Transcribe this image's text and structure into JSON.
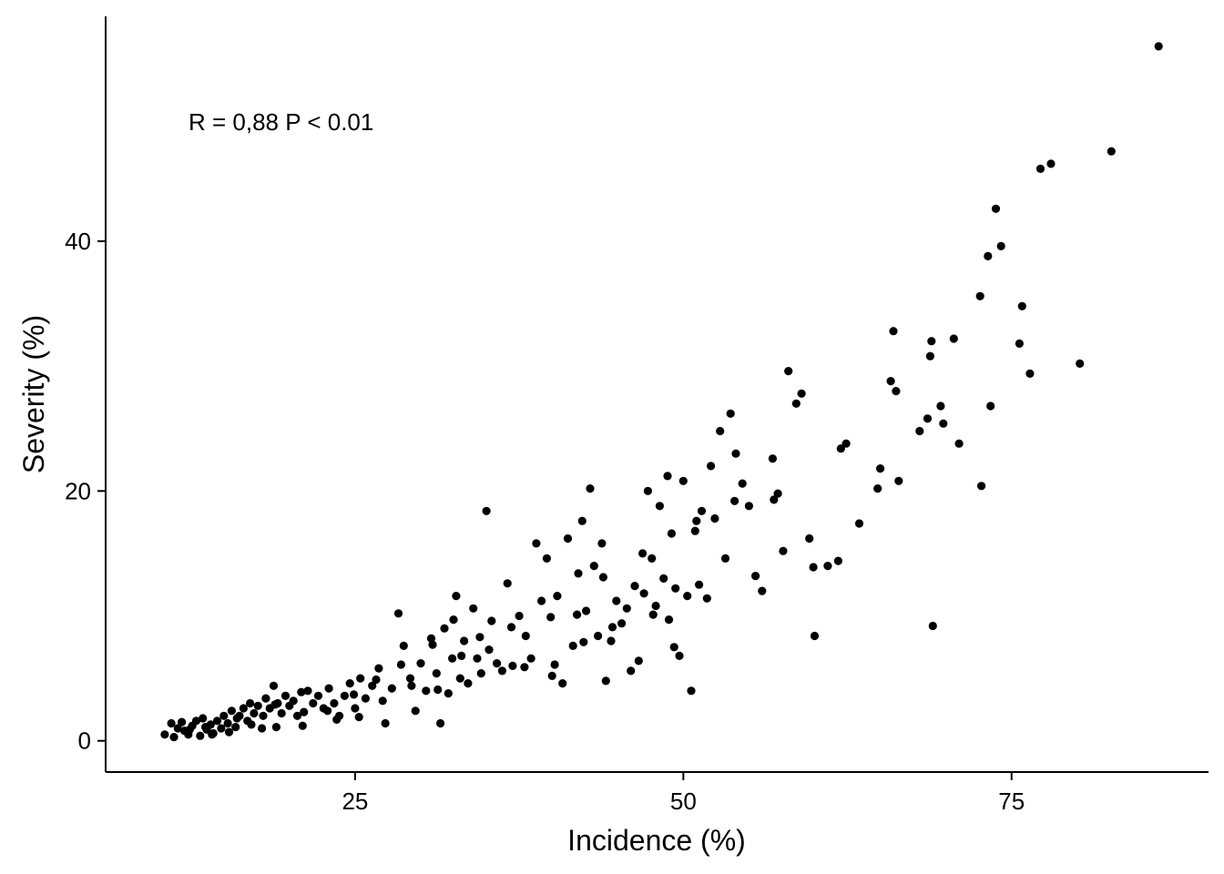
{
  "chart_data": {
    "type": "scatter",
    "xlabel": "Incidence (%)",
    "ylabel": "Severity (%)",
    "xlim": [
      6,
      90
    ],
    "ylim": [
      -2.5,
      58
    ],
    "xticks": [
      25,
      50,
      75
    ],
    "yticks": [
      0,
      20,
      40
    ],
    "annotation": "R = 0,88 P < 0.01",
    "grid": false,
    "legend": "none",
    "point_color": "#000000",
    "points": [
      [
        10.5,
        0.5
      ],
      [
        11.2,
        0.3
      ],
      [
        11.5,
        1.0
      ],
      [
        11.8,
        1.5
      ],
      [
        12.0,
        0.8
      ],
      [
        12.3,
        0.5
      ],
      [
        12.6,
        1.2
      ],
      [
        12.9,
        1.6
      ],
      [
        13.2,
        0.4
      ],
      [
        13.4,
        1.8
      ],
      [
        13.7,
        0.9
      ],
      [
        14.0,
        1.3
      ],
      [
        14.2,
        0.6
      ],
      [
        14.5,
        1.6
      ],
      [
        14.8,
        1.0
      ],
      [
        15.0,
        2.0
      ],
      [
        15.3,
        1.4
      ],
      [
        15.6,
        2.4
      ],
      [
        15.9,
        1.1
      ],
      [
        16.2,
        2.0
      ],
      [
        16.5,
        2.6
      ],
      [
        16.8,
        1.6
      ],
      [
        17.0,
        3.0
      ],
      [
        17.3,
        2.2
      ],
      [
        17.6,
        2.8
      ],
      [
        17.9,
        1.0
      ],
      [
        18.2,
        3.4
      ],
      [
        18.5,
        2.6
      ],
      [
        18.8,
        4.4
      ],
      [
        19.1,
        3.0
      ],
      [
        19.4,
        2.2
      ],
      [
        19.7,
        3.6
      ],
      [
        20.0,
        2.8
      ],
      [
        20.3,
        3.2
      ],
      [
        20.6,
        2.0
      ],
      [
        21.0,
        1.2
      ],
      [
        21.4,
        4.0
      ],
      [
        21.8,
        3.0
      ],
      [
        22.2,
        3.6
      ],
      [
        22.6,
        2.6
      ],
      [
        23.0,
        4.2
      ],
      [
        23.4,
        3.0
      ],
      [
        23.8,
        2.0
      ],
      [
        24.2,
        3.6
      ],
      [
        24.6,
        4.6
      ],
      [
        25.0,
        2.6
      ],
      [
        25.4,
        5.0
      ],
      [
        25.8,
        3.4
      ],
      [
        26.3,
        4.4
      ],
      [
        26.8,
        5.8
      ],
      [
        27.3,
        1.4
      ],
      [
        27.8,
        4.2
      ],
      [
        28.3,
        10.2
      ],
      [
        28.7,
        7.6
      ],
      [
        29.2,
        5.0
      ],
      [
        29.6,
        2.4
      ],
      [
        30.0,
        6.2
      ],
      [
        30.4,
        4.0
      ],
      [
        30.8,
        8.2
      ],
      [
        31.2,
        5.4
      ],
      [
        31.5,
        1.4
      ],
      [
        31.8,
        9.0
      ],
      [
        32.1,
        3.8
      ],
      [
        32.4,
        6.6
      ],
      [
        32.7,
        11.6
      ],
      [
        33.0,
        5.0
      ],
      [
        33.3,
        8.0
      ],
      [
        33.6,
        4.6
      ],
      [
        34.0,
        10.6
      ],
      [
        34.3,
        6.6
      ],
      [
        34.6,
        5.4
      ],
      [
        35.0,
        18.4
      ],
      [
        35.4,
        9.6
      ],
      [
        35.8,
        6.2
      ],
      [
        36.2,
        5.6
      ],
      [
        36.6,
        12.6
      ],
      [
        37.0,
        6.0
      ],
      [
        37.5,
        10.0
      ],
      [
        38.0,
        8.4
      ],
      [
        38.4,
        6.6
      ],
      [
        38.8,
        15.8
      ],
      [
        39.2,
        11.2
      ],
      [
        39.6,
        14.6
      ],
      [
        40.0,
        5.2
      ],
      [
        40.4,
        11.6
      ],
      [
        40.8,
        4.6
      ],
      [
        41.2,
        16.2
      ],
      [
        41.6,
        7.6
      ],
      [
        42.0,
        13.4
      ],
      [
        42.3,
        17.6
      ],
      [
        42.6,
        10.4
      ],
      [
        42.9,
        20.2
      ],
      [
        43.2,
        14.0
      ],
      [
        43.5,
        8.4
      ],
      [
        43.8,
        15.8
      ],
      [
        44.1,
        4.8
      ],
      [
        44.5,
        8.0
      ],
      [
        44.9,
        11.2
      ],
      [
        45.3,
        9.4
      ],
      [
        45.7,
        10.6
      ],
      [
        46.0,
        5.6
      ],
      [
        46.3,
        12.4
      ],
      [
        46.6,
        6.4
      ],
      [
        47.0,
        11.8
      ],
      [
        47.3,
        20.0
      ],
      [
        47.6,
        14.6
      ],
      [
        47.9,
        10.8
      ],
      [
        48.2,
        18.8
      ],
      [
        48.5,
        13.0
      ],
      [
        48.8,
        21.2
      ],
      [
        49.1,
        16.6
      ],
      [
        49.4,
        12.2
      ],
      [
        49.7,
        6.8
      ],
      [
        50.0,
        20.8
      ],
      [
        50.3,
        11.6
      ],
      [
        50.6,
        4.0
      ],
      [
        51.0,
        17.6
      ],
      [
        51.4,
        18.4
      ],
      [
        51.8,
        11.4
      ],
      [
        52.1,
        22.0
      ],
      [
        52.4,
        17.8
      ],
      [
        52.8,
        24.8
      ],
      [
        53.2,
        14.6
      ],
      [
        53.6,
        26.2
      ],
      [
        54.0,
        23.0
      ],
      [
        54.5,
        20.6
      ],
      [
        55.0,
        18.8
      ],
      [
        55.5,
        13.2
      ],
      [
        56.0,
        12.0
      ],
      [
        56.8,
        22.6
      ],
      [
        57.2,
        19.8
      ],
      [
        57.6,
        15.2
      ],
      [
        58.0,
        29.6
      ],
      [
        58.6,
        27.0
      ],
      [
        59.0,
        27.8
      ],
      [
        59.6,
        16.2
      ],
      [
        60.0,
        8.4
      ],
      [
        61.0,
        14.0
      ],
      [
        61.8,
        14.4
      ],
      [
        62.0,
        23.4
      ],
      [
        62.4,
        23.8
      ],
      [
        63.4,
        17.4
      ],
      [
        64.8,
        20.2
      ],
      [
        65.0,
        21.8
      ],
      [
        65.8,
        28.8
      ],
      [
        66.0,
        32.8
      ],
      [
        66.2,
        28.0
      ],
      [
        66.4,
        20.8
      ],
      [
        68.0,
        24.8
      ],
      [
        68.6,
        25.8
      ],
      [
        68.8,
        30.8
      ],
      [
        68.9,
        32.0
      ],
      [
        69.0,
        9.2
      ],
      [
        69.6,
        26.8
      ],
      [
        69.8,
        25.4
      ],
      [
        70.6,
        32.2
      ],
      [
        71.0,
        23.8
      ],
      [
        72.6,
        35.6
      ],
      [
        72.7,
        20.4
      ],
      [
        73.2,
        38.8
      ],
      [
        73.4,
        26.8
      ],
      [
        73.8,
        42.6
      ],
      [
        74.2,
        39.6
      ],
      [
        75.6,
        31.8
      ],
      [
        75.8,
        34.8
      ],
      [
        76.4,
        29.4
      ],
      [
        77.2,
        45.8
      ],
      [
        78.0,
        46.2
      ],
      [
        80.2,
        30.2
      ],
      [
        82.6,
        47.2
      ],
      [
        86.2,
        55.6
      ],
      [
        12.4,
        0.9
      ],
      [
        13.6,
        1.1
      ],
      [
        15.4,
        0.7
      ],
      [
        17.1,
        1.3
      ],
      [
        18.9,
        2.9
      ],
      [
        20.9,
        3.9
      ],
      [
        22.9,
        2.4
      ],
      [
        24.9,
        3.7
      ],
      [
        26.6,
        4.9
      ],
      [
        28.5,
        6.1
      ],
      [
        30.9,
        7.7
      ],
      [
        32.5,
        9.7
      ],
      [
        34.5,
        8.3
      ],
      [
        36.9,
        9.1
      ],
      [
        39.9,
        9.9
      ],
      [
        41.9,
        10.1
      ],
      [
        43.9,
        13.1
      ],
      [
        46.9,
        15.0
      ],
      [
        48.9,
        9.7
      ],
      [
        50.9,
        16.8
      ],
      [
        53.9,
        19.2
      ],
      [
        56.9,
        19.3
      ],
      [
        59.9,
        13.9
      ],
      [
        11.0,
        1.4
      ],
      [
        14.1,
        0.5
      ],
      [
        16.0,
        1.8
      ],
      [
        18.0,
        2.0
      ],
      [
        19.0,
        1.1
      ],
      [
        21.1,
        2.3
      ],
      [
        23.6,
        1.7
      ],
      [
        25.3,
        1.9
      ],
      [
        27.1,
        3.2
      ],
      [
        29.3,
        4.4
      ],
      [
        31.3,
        4.1
      ],
      [
        33.1,
        6.8
      ],
      [
        35.2,
        7.3
      ],
      [
        37.9,
        5.9
      ],
      [
        40.2,
        6.1
      ],
      [
        42.4,
        7.9
      ],
      [
        44.6,
        9.1
      ],
      [
        47.7,
        10.1
      ],
      [
        49.3,
        7.5
      ],
      [
        51.2,
        12.5
      ]
    ]
  }
}
